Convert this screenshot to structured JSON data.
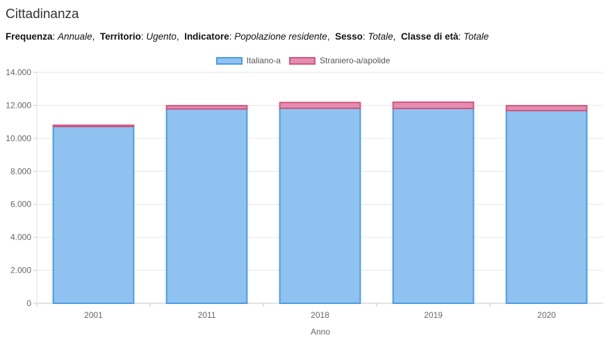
{
  "title": "Cittadinanza",
  "filters": [
    {
      "label": "Frequenza",
      "value": "Annuale"
    },
    {
      "label": "Territorio",
      "value": "Ugento"
    },
    {
      "label": "Indicatore",
      "value": "Popolazione residente"
    },
    {
      "label": "Sesso",
      "value": "Totale"
    },
    {
      "label": "Classe di età",
      "value": "Totale"
    }
  ],
  "chart_data": {
    "type": "bar",
    "stacked": true,
    "categories": [
      "2001",
      "2011",
      "2018",
      "2019",
      "2020"
    ],
    "series": [
      {
        "name": "Italiano-a",
        "values": [
          10720,
          11780,
          11820,
          11810,
          11680
        ],
        "fill": "#90c2f1",
        "stroke": "#4a9ce2"
      },
      {
        "name": "Straniero-a/apolide",
        "values": [
          70,
          200,
          350,
          380,
          300
        ],
        "fill": "#e48db0",
        "stroke": "#d0557f"
      }
    ],
    "xlabel": "Anno",
    "ylabel": "",
    "ylim": [
      0,
      14000
    ],
    "yticks": [
      "0",
      "2.000",
      "4.000",
      "6.000",
      "8.000",
      "10.000",
      "12.000",
      "14.000"
    ],
    "grid": true,
    "legend": "top-center"
  }
}
